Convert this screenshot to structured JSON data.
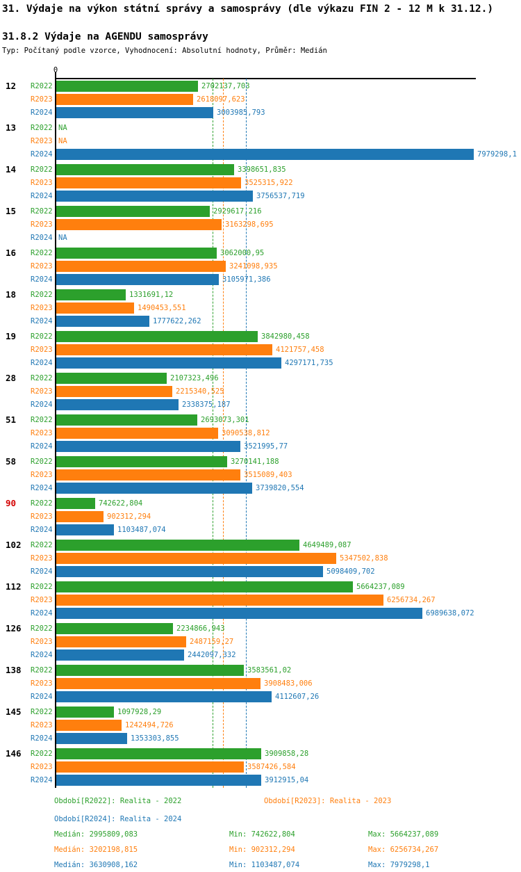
{
  "title": "31. Výdaje na výkon státní správy a samosprávy (dle výkazu FIN 2 - 12 M k 31.12.)",
  "subtitle": "31.8.2 Výdaje na AGENDU samosprávy",
  "type_line": "Typ: Počítaný podle vzorce, Vyhodnocení: Absolutní hodnoty, Průměr: Medián",
  "axis": {
    "zero_label": "0"
  },
  "colors": {
    "green_2022": "#2ca02c",
    "orange_2023": "#ff7f0e",
    "blue_2024": "#1f77b4",
    "highlight_red": "#d40000",
    "axis_black": "#000000"
  },
  "chart_data": {
    "type": "bar",
    "orientation": "horizontal",
    "title": "31.8.2 Výdaje na AGENDU samosprávy",
    "xlabel": "",
    "ylabel": "",
    "xlim": [
      0,
      8030000
    ],
    "grid": false,
    "legend_position": "bottom",
    "na_label": "NA",
    "categories": [
      "12",
      "13",
      "14",
      "15",
      "16",
      "18",
      "19",
      "28",
      "51",
      "58",
      "90",
      "102",
      "112",
      "126",
      "138",
      "145",
      "146"
    ],
    "highlighted_category": "90",
    "series": [
      {
        "name": "R2022",
        "color_key": "green_2022",
        "values": [
          2702137.703,
          null,
          3398651.835,
          2929617.216,
          3062000.95,
          1331691.12,
          3842980.458,
          2107323.496,
          2693073.301,
          3270141.188,
          742622.804,
          4649489.087,
          5664237.089,
          2234866.943,
          3583561.02,
          1097928.29,
          3909858.28
        ],
        "labels": [
          "2702137,703",
          "NA",
          "3398651,835",
          "2929617,216",
          "3062000,95",
          "1331691,12",
          "3842980,458",
          "2107323,496",
          "2693073,301",
          "3270141,188",
          "742622,804",
          "4649489,087",
          "5664237,089",
          "2234866,943",
          "3583561,02",
          "1097928,29",
          "3909858,28"
        ]
      },
      {
        "name": "R2023",
        "color_key": "orange_2023",
        "values": [
          2618097.623,
          null,
          3525315.922,
          3163298.695,
          3241098.935,
          1490453.551,
          4121757.458,
          2215340.525,
          3090538.812,
          3515089.403,
          902312.294,
          5347502.838,
          6256734.267,
          2487159.27,
          3908483.006,
          1242494.726,
          3587426.584
        ],
        "labels": [
          "2618097,623",
          "NA",
          "3525315,922",
          "3163298,695",
          "3241098,935",
          "1490453,551",
          "4121757,458",
          "2215340,525",
          "3090538,812",
          "3515089,403",
          "902312,294",
          "5347502,838",
          "6256734,267",
          "2487159,27",
          "3908483,006",
          "1242494,726",
          "3587426,584"
        ]
      },
      {
        "name": "R2024",
        "color_key": "blue_2024",
        "values": [
          3003985.793,
          7979298.1,
          3756537.719,
          null,
          3105971.386,
          1777622.262,
          4297171.735,
          2338375.187,
          3521995.77,
          3739820.554,
          1103487.074,
          5098409.702,
          6989638.072,
          2442097.332,
          4112607.26,
          1353303.855,
          3912915.04
        ],
        "labels": [
          "3003985,793",
          "7979298,1",
          "3756537,719",
          "NA",
          "3105971,386",
          "1777622,262",
          "4297171,735",
          "2338375,187",
          "3521995,77",
          "3739820,554",
          "1103487,074",
          "5098409,702",
          "6989638,072",
          "2442097,332",
          "4112607,26",
          "1353303,855",
          "3912915,04"
        ]
      }
    ],
    "medians": [
      {
        "series": "R2022",
        "value": 2995809.083,
        "color_key": "green_2022"
      },
      {
        "series": "R2023",
        "value": 3202198.815,
        "color_key": "orange_2023"
      },
      {
        "series": "R2024",
        "value": 3630908.162,
        "color_key": "blue_2024"
      }
    ]
  },
  "legend": [
    {
      "text": "Období[R2022]: Realita - 2022",
      "color_key": "green_2022"
    },
    {
      "text": "Období[R2023]: Realita - 2023",
      "color_key": "orange_2023"
    },
    {
      "text": "Období[R2024]: Realita - 2024",
      "color_key": "blue_2024"
    }
  ],
  "stats": [
    {
      "median": "Medián: 2995809,083",
      "min": "Min: 742622,804",
      "max": "Max: 5664237,089",
      "color_key": "green_2022"
    },
    {
      "median": "Medián: 3202198,815",
      "min": "Min: 902312,294",
      "max": "Max: 6256734,267",
      "color_key": "orange_2023"
    },
    {
      "median": "Medián: 3630908,162",
      "min": "Min: 1103487,074",
      "max": "Max: 7979298,1",
      "color_key": "blue_2024"
    }
  ]
}
